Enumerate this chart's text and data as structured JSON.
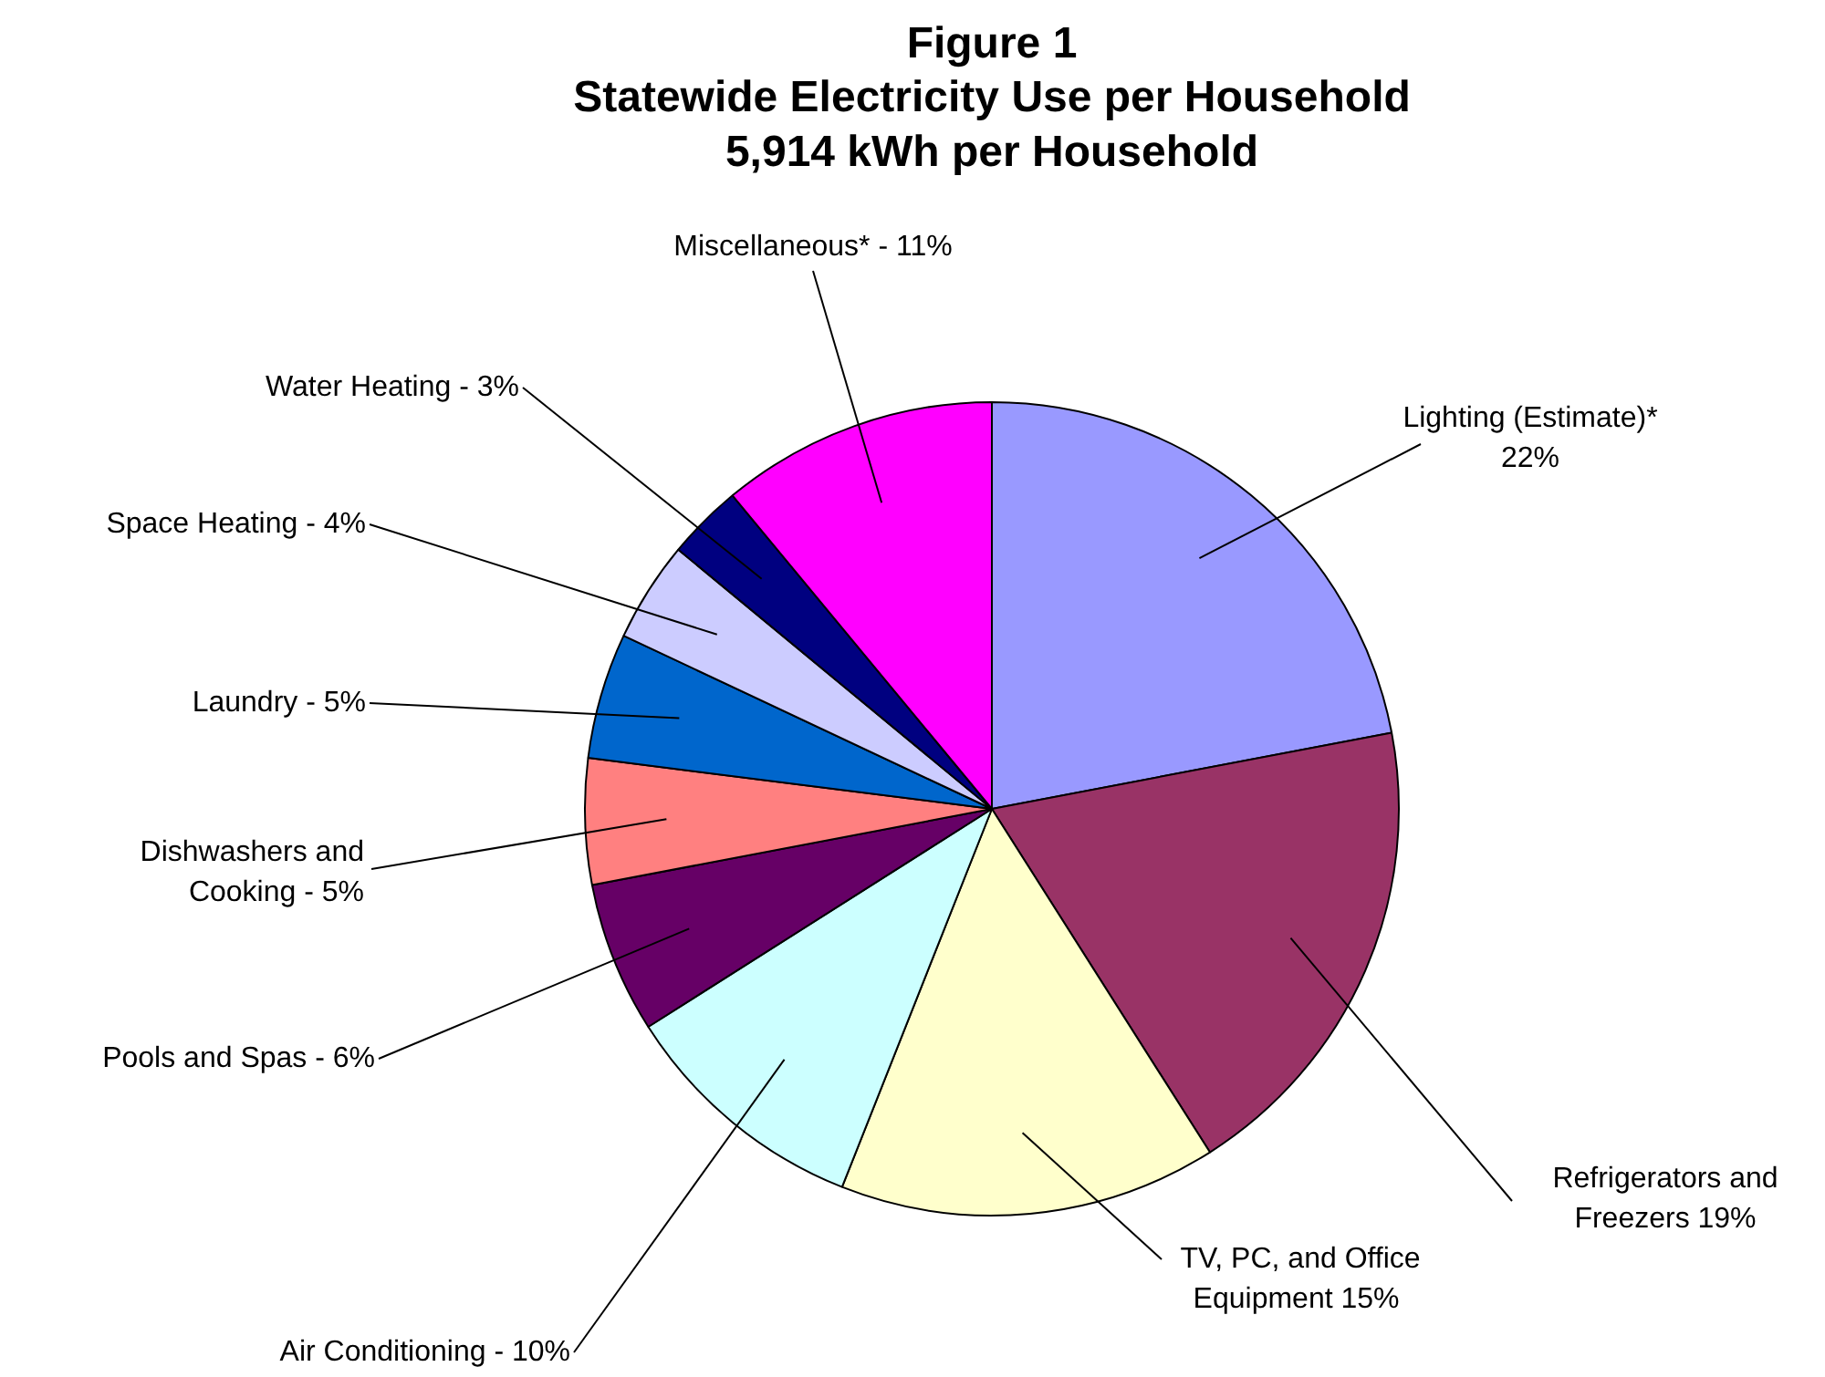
{
  "chart_data": {
    "type": "pie",
    "title": "Figure 1\nStatewide Electricity Use per Household\n5,914 kWh per Household",
    "categories": [
      "Lighting (Estimate)*\n22%",
      "Refrigerators and\nFreezers 19%",
      "TV, PC, and Office\nEquipment  15%",
      "Air Conditioning - 10%",
      "Pools and Spas - 6%",
      "Dishwashers and\nCooking - 5%",
      "Laundry - 5%",
      "Space Heating - 4%",
      "Water Heating - 3%",
      "Miscellaneous* - 11%"
    ],
    "values": [
      22,
      19,
      15,
      10,
      6,
      5,
      5,
      4,
      3,
      11
    ],
    "colors": [
      "#9999ff",
      "#993366",
      "#ffffcc",
      "#ccffff",
      "#660066",
      "#ff8080",
      "#0066cc",
      "#ccccff",
      "#000080",
      "#ff00ff"
    ]
  }
}
